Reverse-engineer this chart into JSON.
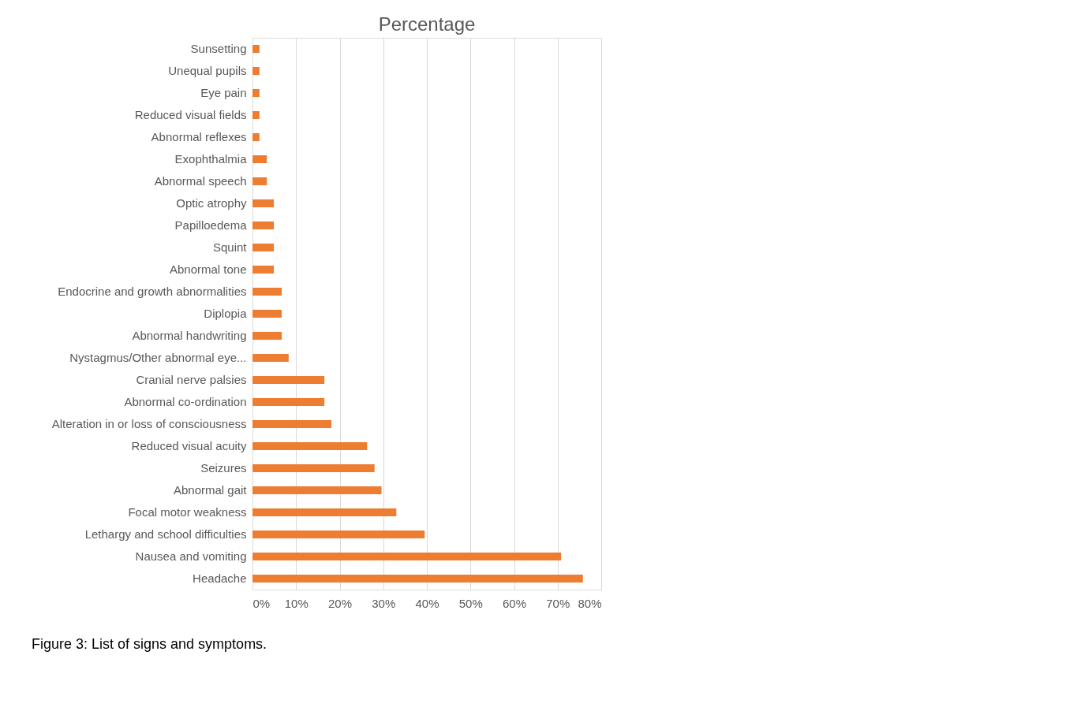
{
  "chart_data": {
    "type": "bar",
    "orientation": "horizontal",
    "title": "Percentage",
    "categories": [
      "Sunsetting",
      "Unequal pupils",
      "Eye pain",
      "Reduced visual fields",
      "Abnormal reflexes",
      "Exophthalmia",
      "Abnormal speech",
      "Optic atrophy",
      "Papilloedema",
      "Squint",
      "Abnormal tone",
      "Endocrine and growth abnormalities",
      "Diplopia",
      "Abnormal handwriting",
      "Nystagmus/Other abnormal eye...",
      "Cranial nerve palsies",
      "Abnormal co-ordination",
      "Alteration in or loss of consciousness",
      "Reduced visual acuity",
      "Seizures",
      "Abnormal gait",
      "Focal motor weakness",
      "Lethargy and school difficulties",
      "Nausea and vomiting",
      "Headache"
    ],
    "values": [
      1.6,
      1.6,
      1.6,
      1.6,
      1.6,
      3.3,
      3.3,
      4.9,
      4.9,
      4.9,
      4.9,
      6.7,
      6.7,
      6.7,
      8.3,
      16.5,
      16.5,
      18.1,
      26.3,
      28.0,
      29.6,
      33.0,
      39.5,
      70.8,
      75.8
    ],
    "color": "#ed7d31",
    "xlim": [
      0,
      80
    ],
    "xticks": [
      {
        "value": 0,
        "label": "0%"
      },
      {
        "value": 10,
        "label": "10%"
      },
      {
        "value": 20,
        "label": "20%"
      },
      {
        "value": 30,
        "label": "30%"
      },
      {
        "value": 40,
        "label": "40%"
      },
      {
        "value": 50,
        "label": "50%"
      },
      {
        "value": 60,
        "label": "60%"
      },
      {
        "value": 70,
        "label": "70%"
      },
      {
        "value": 80,
        "label": "80%"
      }
    ],
    "grid": "x",
    "annotations": [
      "Figure 3: List of signs and symptoms."
    ]
  }
}
